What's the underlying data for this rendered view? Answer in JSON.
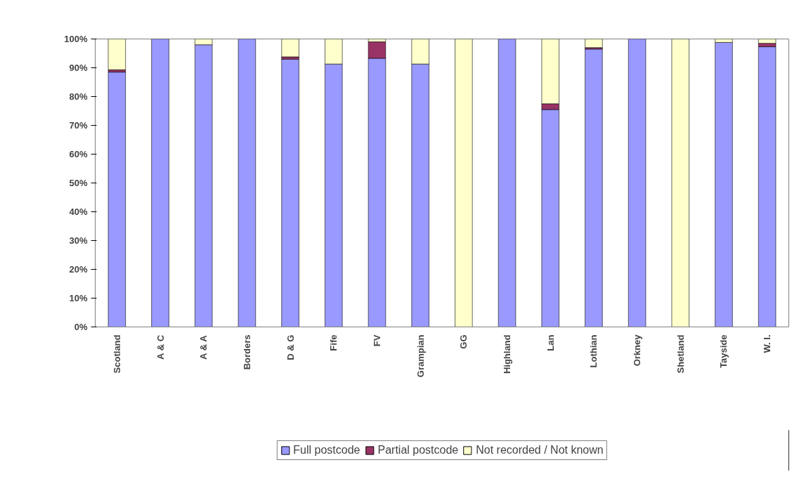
{
  "chart_data": {
    "type": "bar",
    "stacked": true,
    "categories": [
      "Scotland",
      "A & C",
      "A & A",
      "Borders",
      "D & G",
      "Fife",
      "FV",
      "Grampian",
      "GG",
      "Highland",
      "Lan",
      "Lothian",
      "Orkney",
      "Shetland",
      "Tayside",
      "W. I."
    ],
    "series": [
      {
        "name": "Full postcode",
        "color": "#9999ff",
        "values": [
          88.5,
          100,
          98,
          100,
          93,
          91.3,
          93.3,
          91.3,
          0,
          100,
          75.5,
          96.5,
          100,
          0,
          98.8,
          97.3
        ]
      },
      {
        "name": "Partial postcode",
        "color": "#993366",
        "values": [
          0.8,
          0,
          0,
          0,
          0.8,
          0,
          5.7,
          0,
          0,
          0,
          2,
          0.5,
          0,
          0,
          0,
          1.2
        ]
      },
      {
        "name": "Not recorded / Not known",
        "color": "#ffffcc",
        "values": [
          10.7,
          0,
          2,
          0,
          6.2,
          8.7,
          1,
          8.7,
          100,
          0,
          22.5,
          3,
          0,
          100,
          1.2,
          1.5
        ]
      }
    ],
    "ylim": [
      0,
      100
    ],
    "yticks": [
      {
        "value": 0,
        "label": "0%"
      },
      {
        "value": 10,
        "label": "10%"
      },
      {
        "value": 20,
        "label": "20%"
      },
      {
        "value": 30,
        "label": "30%"
      },
      {
        "value": 40,
        "label": "40%"
      },
      {
        "value": 50,
        "label": "50%"
      },
      {
        "value": 60,
        "label": "60%"
      },
      {
        "value": 70,
        "label": "70%"
      },
      {
        "value": 80,
        "label": "80%"
      },
      {
        "value": 90,
        "label": "90%"
      },
      {
        "value": 100,
        "label": "100%"
      }
    ],
    "grid": false,
    "legend": "bottom"
  }
}
